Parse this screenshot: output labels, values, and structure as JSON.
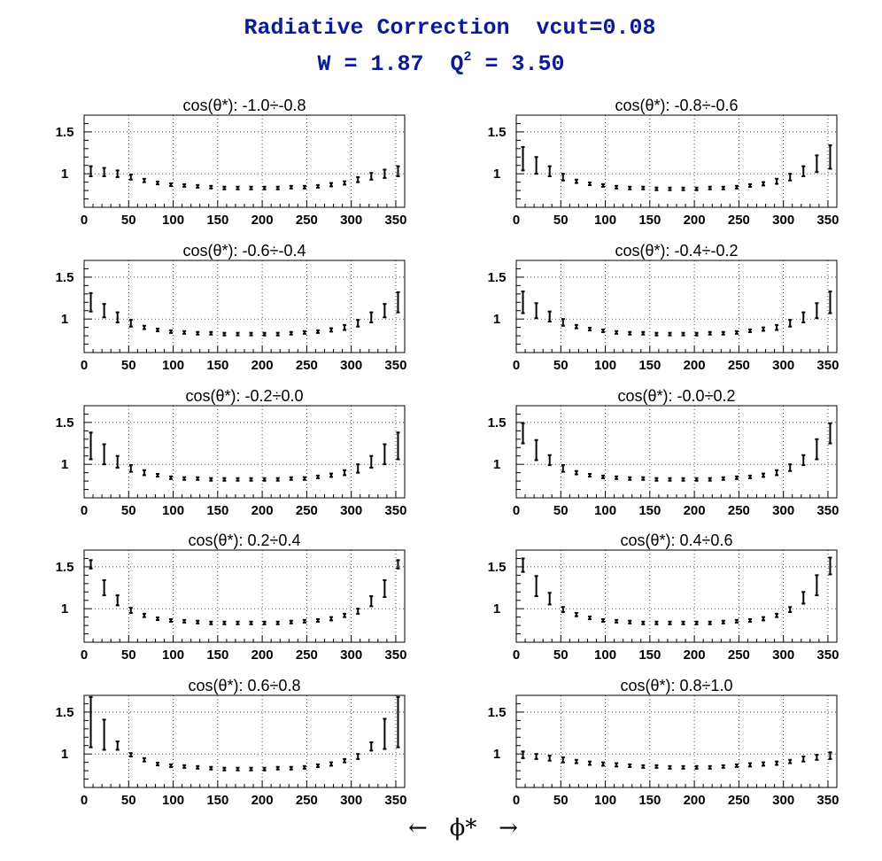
{
  "figure": {
    "title_line1": "Radiative Correction  vcut=0.08",
    "title_line2_prefix": "W = 1.87  Q",
    "title_line2_sup": "2",
    "title_line2_suffix": " = 3.50",
    "x_axis_label": "←   ϕ*   →"
  },
  "chart_data": {
    "type": "scatter",
    "error_bars": true,
    "panel_title_prefix": "cos(θ*): ",
    "xlim": [
      0,
      360
    ],
    "ylim": [
      0.6,
      1.7
    ],
    "xticks": [
      0,
      50,
      100,
      150,
      200,
      250,
      300,
      350
    ],
    "yticks": [
      1,
      1.5
    ],
    "ytick_labels": [
      "1",
      "1.5"
    ],
    "grid": true,
    "x": [
      7.5,
      22.5,
      37.5,
      52.5,
      67.5,
      82.5,
      97.5,
      112.5,
      127.5,
      142.5,
      157.5,
      172.5,
      187.5,
      202.5,
      217.5,
      232.5,
      247.5,
      262.5,
      277.5,
      292.5,
      307.5,
      322.5,
      337.5,
      352.5
    ],
    "panels": [
      {
        "label": "-1.0÷-0.8",
        "y": [
          1.03,
          1.02,
          1.0,
          0.96,
          0.92,
          0.89,
          0.87,
          0.86,
          0.85,
          0.84,
          0.83,
          0.83,
          0.83,
          0.83,
          0.83,
          0.84,
          0.84,
          0.85,
          0.87,
          0.89,
          0.93,
          0.97,
          1.0,
          1.03
        ],
        "err": [
          0.06,
          0.05,
          0.04,
          0.03,
          0.02,
          0.015,
          0.01,
          0.01,
          0.01,
          0.01,
          0.01,
          0.01,
          0.01,
          0.01,
          0.01,
          0.01,
          0.01,
          0.015,
          0.02,
          0.02,
          0.03,
          0.04,
          0.05,
          0.06
        ]
      },
      {
        "label": "-0.8÷-0.6",
        "y": [
          1.18,
          1.1,
          1.03,
          0.96,
          0.91,
          0.88,
          0.86,
          0.84,
          0.83,
          0.83,
          0.82,
          0.82,
          0.82,
          0.82,
          0.83,
          0.83,
          0.84,
          0.86,
          0.88,
          0.91,
          0.96,
          1.03,
          1.12,
          1.2
        ],
        "err": [
          0.14,
          0.1,
          0.06,
          0.04,
          0.02,
          0.015,
          0.01,
          0.01,
          0.01,
          0.01,
          0.01,
          0.01,
          0.01,
          0.01,
          0.01,
          0.01,
          0.01,
          0.015,
          0.02,
          0.03,
          0.04,
          0.06,
          0.1,
          0.14
        ]
      },
      {
        "label": "-0.6÷-0.4",
        "y": [
          1.2,
          1.1,
          1.02,
          0.95,
          0.9,
          0.87,
          0.85,
          0.84,
          0.83,
          0.83,
          0.82,
          0.82,
          0.82,
          0.82,
          0.82,
          0.83,
          0.84,
          0.85,
          0.87,
          0.9,
          0.95,
          1.02,
          1.1,
          1.2
        ],
        "err": [
          0.11,
          0.08,
          0.06,
          0.04,
          0.02,
          0.015,
          0.01,
          0.01,
          0.01,
          0.01,
          0.01,
          0.01,
          0.01,
          0.01,
          0.01,
          0.01,
          0.01,
          0.015,
          0.02,
          0.03,
          0.04,
          0.06,
          0.08,
          0.12
        ]
      },
      {
        "label": "-0.4÷-0.2",
        "y": [
          1.2,
          1.1,
          1.03,
          0.96,
          0.91,
          0.88,
          0.86,
          0.84,
          0.83,
          0.83,
          0.82,
          0.82,
          0.82,
          0.82,
          0.83,
          0.83,
          0.84,
          0.86,
          0.88,
          0.9,
          0.95,
          1.02,
          1.1,
          1.2
        ],
        "err": [
          0.13,
          0.09,
          0.06,
          0.04,
          0.02,
          0.015,
          0.01,
          0.01,
          0.01,
          0.01,
          0.01,
          0.01,
          0.01,
          0.01,
          0.01,
          0.01,
          0.01,
          0.015,
          0.02,
          0.03,
          0.04,
          0.06,
          0.09,
          0.13
        ]
      },
      {
        "label": "-0.2÷0.0",
        "y": [
          1.22,
          1.12,
          1.03,
          0.95,
          0.9,
          0.87,
          0.84,
          0.83,
          0.83,
          0.82,
          0.82,
          0.82,
          0.82,
          0.82,
          0.82,
          0.83,
          0.83,
          0.85,
          0.87,
          0.9,
          0.95,
          1.03,
          1.12,
          1.22
        ],
        "err": [
          0.16,
          0.12,
          0.07,
          0.04,
          0.03,
          0.015,
          0.01,
          0.01,
          0.01,
          0.01,
          0.01,
          0.01,
          0.01,
          0.01,
          0.01,
          0.01,
          0.01,
          0.015,
          0.02,
          0.03,
          0.05,
          0.07,
          0.12,
          0.16
        ]
      },
      {
        "label": "-0.0÷0.2",
        "y": [
          1.37,
          1.17,
          1.05,
          0.95,
          0.9,
          0.87,
          0.85,
          0.84,
          0.83,
          0.83,
          0.82,
          0.82,
          0.82,
          0.82,
          0.82,
          0.83,
          0.84,
          0.85,
          0.87,
          0.9,
          0.96,
          1.05,
          1.18,
          1.37
        ],
        "err": [
          0.12,
          0.12,
          0.06,
          0.04,
          0.02,
          0.015,
          0.01,
          0.01,
          0.01,
          0.01,
          0.01,
          0.01,
          0.01,
          0.01,
          0.01,
          0.01,
          0.01,
          0.015,
          0.02,
          0.03,
          0.04,
          0.06,
          0.12,
          0.12
        ]
      },
      {
        "label": "0.2÷0.4",
        "y": [
          1.53,
          1.25,
          1.1,
          0.98,
          0.92,
          0.88,
          0.86,
          0.85,
          0.84,
          0.83,
          0.83,
          0.83,
          0.83,
          0.83,
          0.83,
          0.84,
          0.85,
          0.86,
          0.88,
          0.92,
          0.97,
          1.09,
          1.24,
          1.53
        ],
        "err": [
          0.05,
          0.09,
          0.06,
          0.03,
          0.02,
          0.015,
          0.01,
          0.01,
          0.01,
          0.01,
          0.01,
          0.01,
          0.01,
          0.01,
          0.01,
          0.01,
          0.01,
          0.015,
          0.02,
          0.02,
          0.03,
          0.06,
          0.1,
          0.05
        ]
      },
      {
        "label": "0.4÷0.6",
        "y": [
          1.52,
          1.27,
          1.12,
          0.99,
          0.93,
          0.89,
          0.86,
          0.85,
          0.84,
          0.83,
          0.83,
          0.83,
          0.83,
          0.83,
          0.83,
          0.84,
          0.85,
          0.86,
          0.88,
          0.92,
          0.99,
          1.13,
          1.28,
          1.51
        ],
        "err": [
          0.08,
          0.12,
          0.07,
          0.03,
          0.02,
          0.015,
          0.01,
          0.01,
          0.01,
          0.01,
          0.01,
          0.01,
          0.01,
          0.01,
          0.01,
          0.01,
          0.01,
          0.015,
          0.02,
          0.02,
          0.03,
          0.07,
          0.12,
          0.1
        ]
      },
      {
        "label": "0.6÷0.8",
        "y": [
          1.38,
          1.23,
          1.1,
          0.99,
          0.93,
          0.88,
          0.86,
          0.85,
          0.84,
          0.83,
          0.82,
          0.82,
          0.82,
          0.82,
          0.83,
          0.83,
          0.84,
          0.86,
          0.88,
          0.92,
          0.97,
          1.09,
          1.24,
          1.38
        ],
        "err": [
          0.3,
          0.18,
          0.05,
          0.02,
          0.02,
          0.015,
          0.01,
          0.01,
          0.01,
          0.01,
          0.01,
          0.01,
          0.01,
          0.01,
          0.01,
          0.01,
          0.01,
          0.015,
          0.02,
          0.02,
          0.03,
          0.05,
          0.18,
          0.3
        ]
      },
      {
        "label": "0.8÷1.0",
        "y": [
          0.99,
          0.97,
          0.95,
          0.93,
          0.91,
          0.89,
          0.88,
          0.87,
          0.86,
          0.85,
          0.85,
          0.84,
          0.84,
          0.84,
          0.84,
          0.85,
          0.86,
          0.87,
          0.88,
          0.89,
          0.91,
          0.94,
          0.96,
          0.98
        ],
        "err": [
          0.04,
          0.03,
          0.03,
          0.03,
          0.02,
          0.02,
          0.02,
          0.02,
          0.015,
          0.015,
          0.015,
          0.015,
          0.015,
          0.015,
          0.015,
          0.015,
          0.015,
          0.02,
          0.02,
          0.02,
          0.02,
          0.03,
          0.03,
          0.04
        ]
      }
    ]
  }
}
